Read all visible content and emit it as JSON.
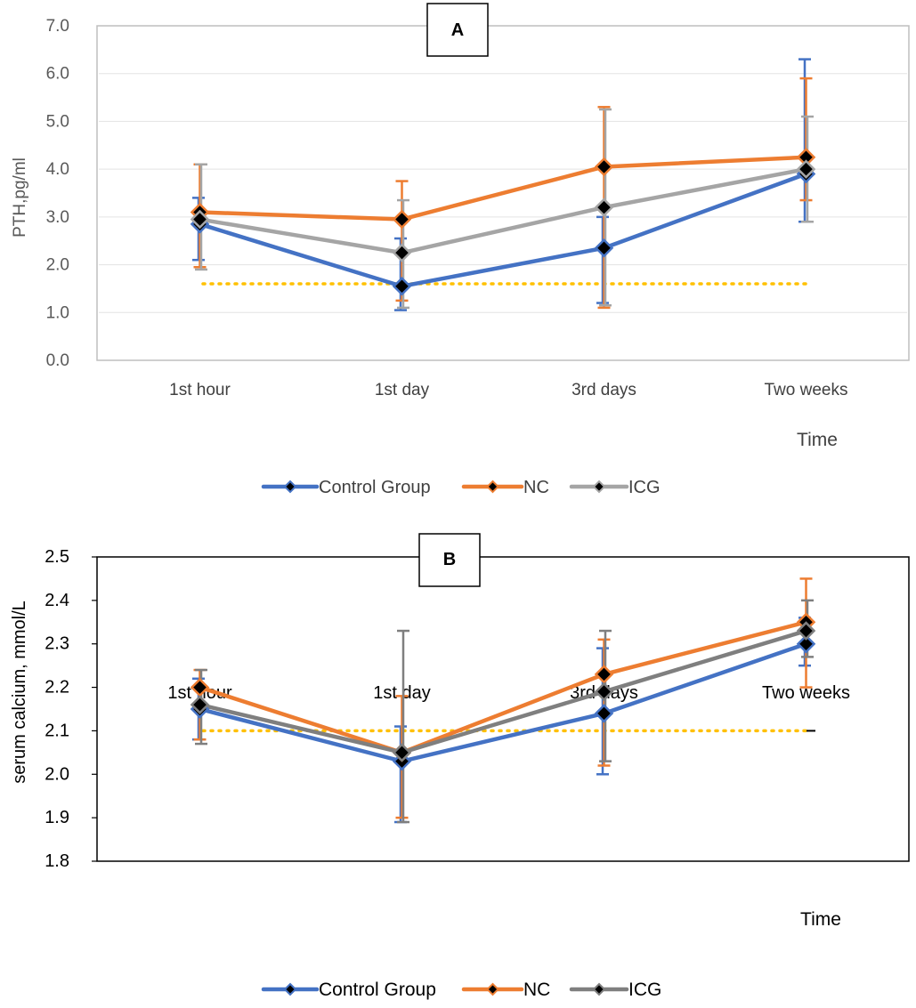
{
  "chart_data": [
    {
      "type": "line",
      "panel_label": "A",
      "categories": [
        "1st hour",
        "1st day",
        "3rd days",
        "Two weeks"
      ],
      "ylabel": "PTH,pg/ml",
      "xlabel": "Time",
      "ylim": [
        0,
        7
      ],
      "yticks": [
        "0.0",
        "1.0",
        "2.0",
        "3.0",
        "4.0",
        "5.0",
        "6.0",
        "7.0"
      ],
      "reference_line": 1.6,
      "series": [
        {
          "name": "Control Group",
          "color": "#4472C4",
          "values": [
            2.85,
            1.55,
            2.35,
            3.9
          ],
          "err_low": [
            2.1,
            1.05,
            1.2,
            2.9
          ],
          "err_high": [
            3.4,
            2.55,
            3.0,
            6.3
          ]
        },
        {
          "name": "NC",
          "color": "#ED7D31",
          "values": [
            3.1,
            2.95,
            4.05,
            4.25
          ],
          "err_low": [
            1.95,
            1.25,
            1.1,
            3.35
          ],
          "err_high": [
            4.1,
            3.75,
            5.3,
            5.9
          ]
        },
        {
          "name": "ICG",
          "color": "#A5A5A5",
          "values": [
            2.95,
            2.25,
            3.2,
            4.0
          ],
          "err_low": [
            1.9,
            1.1,
            1.15,
            2.9
          ],
          "err_high": [
            4.1,
            3.35,
            5.25,
            5.1
          ]
        }
      ],
      "legend": [
        "Control Group",
        "NC",
        "ICG"
      ]
    },
    {
      "type": "line",
      "panel_label": "B",
      "categories": [
        "1st hour",
        "1st day",
        "3rd days",
        "Two weeks"
      ],
      "ylabel": "serum calcium, mmol/L",
      "xlabel": "Time",
      "ylim": [
        1.8,
        2.5
      ],
      "yticks": [
        "1.8",
        "1.9",
        "2.0",
        "2.1",
        "2.2",
        "2.3",
        "2.4",
        "2.5"
      ],
      "reference_line": 2.1,
      "series": [
        {
          "name": "Control Group",
          "color": "#4472C4",
          "values": [
            2.15,
            2.03,
            2.14,
            2.3
          ],
          "err_low": [
            2.08,
            1.89,
            2.0,
            2.25
          ],
          "err_high": [
            2.22,
            2.11,
            2.29,
            2.36
          ]
        },
        {
          "name": "NC",
          "color": "#ED7D31",
          "values": [
            2.2,
            2.05,
            2.23,
            2.35
          ],
          "err_low": [
            2.08,
            1.9,
            2.02,
            2.2
          ],
          "err_high": [
            2.24,
            2.18,
            2.31,
            2.45
          ]
        },
        {
          "name": "ICG",
          "color": "#7F7F7F",
          "values": [
            2.16,
            2.05,
            2.19,
            2.33
          ],
          "err_low": [
            2.07,
            1.89,
            2.03,
            2.27
          ],
          "err_high": [
            2.24,
            2.33,
            2.33,
            2.4
          ]
        }
      ],
      "legend": [
        "Control Group",
        "NC",
        "ICG"
      ]
    }
  ]
}
